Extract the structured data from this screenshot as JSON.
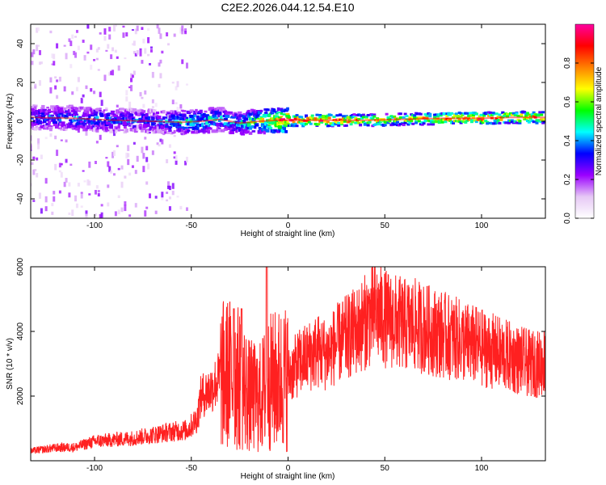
{
  "title": "C2E2.2026.044.12.54.E10",
  "chart_data": [
    {
      "type": "heatmap",
      "xlabel": "Height of straight line (km)",
      "ylabel": "Frequency (Hz)",
      "xlim": [
        -133,
        133
      ],
      "ylim": [
        -50,
        50
      ],
      "xticks": [
        -100,
        -50,
        0,
        50,
        100
      ],
      "yticks": [
        -40,
        -20,
        0,
        20,
        40
      ],
      "colorbar": {
        "label": "Normalized spectral amplitude",
        "range": [
          0,
          1
        ],
        "ticks": [
          "0.0",
          "0.2",
          "0.4",
          "0.6",
          "0.8"
        ],
        "tick_values": [
          0.0,
          0.2,
          0.4,
          0.6,
          0.8
        ],
        "colors": [
          "#ffffff",
          "#e6c8f5",
          "#9b00ff",
          "#0000ff",
          "#00ffff",
          "#00ff00",
          "#ffff00",
          "#ff8000",
          "#ff0000",
          "#ff00a0"
        ]
      },
      "ridge": {
        "x": [
          -133,
          -110,
          -90,
          -70,
          -55,
          -45,
          -35,
          -25,
          -15,
          -5,
          0,
          10,
          20,
          40,
          60,
          80,
          100,
          115,
          133
        ],
        "freq": [
          2,
          1.5,
          0.5,
          0,
          -0.5,
          0,
          1,
          -1,
          0,
          0.5,
          0.5,
          0.5,
          0.5,
          0.5,
          1,
          1.5,
          1.5,
          2,
          2
        ],
        "amplitude": [
          0.35,
          0.4,
          0.38,
          0.35,
          0.45,
          0.5,
          0.45,
          0.45,
          0.6,
          0.8,
          0.9,
          0.85,
          0.9,
          0.75,
          0.7,
          0.8,
          0.9,
          0.8,
          0.85
        ]
      }
    },
    {
      "type": "line",
      "xlabel": "Height of straight line (km)",
      "ylabel": "SNR (10 * v/v)",
      "xlim": [
        -133,
        133
      ],
      "ylim": [
        0,
        6000
      ],
      "xticks": [
        -100,
        -50,
        0,
        50,
        100
      ],
      "yticks": [
        2000,
        4000,
        6000
      ],
      "color": "#ff2020",
      "series": [
        {
          "x": [
            -133,
            -120,
            -110,
            -100,
            -90,
            -80,
            -70,
            -60,
            -52,
            -47,
            -45,
            -40,
            -35,
            -30,
            -25,
            -20,
            -15,
            -12,
            -10,
            -5,
            0,
            5,
            10,
            15,
            20,
            25,
            30,
            35,
            40,
            45,
            50,
            55,
            60,
            65,
            70,
            75,
            80,
            85,
            90,
            95,
            100,
            105,
            110,
            115,
            120,
            125,
            130,
            133
          ],
          "y": [
            300,
            400,
            420,
            600,
            650,
            700,
            800,
            900,
            950,
            1300,
            2000,
            2200,
            2600,
            2700,
            2500,
            2000,
            1900,
            2200,
            2400,
            2500,
            2600,
            3000,
            3200,
            3400,
            3300,
            3600,
            3800,
            4000,
            4300,
            4600,
            4400,
            4300,
            4200,
            4200,
            4100,
            4000,
            3900,
            3800,
            3700,
            3600,
            3500,
            3400,
            3300,
            3200,
            3100,
            3000,
            3000,
            3100
          ]
        }
      ]
    }
  ]
}
